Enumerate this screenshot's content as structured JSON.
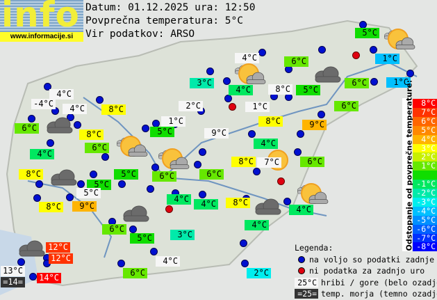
{
  "logo": {
    "word": "info",
    "url": "www.informacije.si"
  },
  "header": {
    "date_line": "Datum: 01.12.2025 ura: 12:50",
    "avg_line": "Povprečna temperatura: 5°C",
    "source_line": "Vir podatkov: ARSO"
  },
  "average_temperature": 5,
  "scale": {
    "title": "Odstopanje od povprečne temperature:",
    "rows": [
      {
        "label": "8°C",
        "color": "#ff0000"
      },
      {
        "label": "7°C",
        "color": "#ff3300"
      },
      {
        "label": "6°C",
        "color": "#ff6600"
      },
      {
        "label": "5°C",
        "color": "#ff8800"
      },
      {
        "label": "4°C",
        "color": "#ffb400"
      },
      {
        "label": "3°C",
        "color": "#ffff00"
      },
      {
        "label": "2°C",
        "color": "#c8f000"
      },
      {
        "label": "1°C",
        "color": "#66e800"
      },
      {
        "label": "",
        "color": "#10dd00"
      },
      {
        "label": "-1°C",
        "color": "#00e860"
      },
      {
        "label": "-2°C",
        "color": "#00eaaa"
      },
      {
        "label": "-3°C",
        "color": "#00eeee"
      },
      {
        "label": "-4°C",
        "color": "#00c0ff"
      },
      {
        "label": "-5°C",
        "color": "#0090ff"
      },
      {
        "label": "-6°C",
        "color": "#0060ff"
      },
      {
        "label": "-7°C",
        "color": "#0030ff"
      },
      {
        "label": "-8°C",
        "color": "#0000ff"
      }
    ]
  },
  "stations": [
    {
      "t": "4°C",
      "kind": "mountain"
    },
    {
      "t": "-4°C",
      "kind": "mountain"
    },
    {
      "t": "4°C",
      "kind": "mountain"
    },
    {
      "t": "6°C",
      "dev": 1
    },
    {
      "t": "8°C",
      "dev": 3
    },
    {
      "t": "3°C",
      "dev": -2
    },
    {
      "t": "2°C",
      "kind": "mountain"
    },
    {
      "t": "1°C",
      "kind": "mountain"
    },
    {
      "t": "5°C",
      "dev": 0
    },
    {
      "t": "8°C",
      "dev": 3
    },
    {
      "t": "6°C",
      "dev": 1
    },
    {
      "t": "4°C",
      "dev": -1
    },
    {
      "t": "9°C",
      "kind": "mountain"
    },
    {
      "t": "8°C",
      "dev": 3
    },
    {
      "t": "5°C",
      "dev": 0
    },
    {
      "t": "5°C",
      "dev": 0
    },
    {
      "t": "6°C",
      "dev": 1
    },
    {
      "t": "6°C",
      "dev": 1
    },
    {
      "t": "5°C",
      "kind": "mountain"
    },
    {
      "t": "9°C",
      "dev": 4
    },
    {
      "t": "8°C",
      "dev": 3
    },
    {
      "t": "4°C",
      "dev": -1
    },
    {
      "t": "4°C",
      "dev": -1
    },
    {
      "t": "5°C",
      "dev": 0
    },
    {
      "t": "1°C",
      "dev": -4
    },
    {
      "t": "4°C",
      "kind": "mountain"
    },
    {
      "t": "6°C",
      "dev": 1
    },
    {
      "t": "4°C",
      "dev": -1
    },
    {
      "t": "8°C",
      "kind": "mountain"
    },
    {
      "t": "5°C",
      "dev": 0
    },
    {
      "t": "6°C",
      "dev": 1
    },
    {
      "t": "1°C",
      "dev": -4
    },
    {
      "t": "1°C",
      "kind": "mountain"
    },
    {
      "t": "6°C",
      "dev": 1
    },
    {
      "t": "8°C",
      "dev": 3
    },
    {
      "t": "9°C",
      "dev": 4
    },
    {
      "t": "4°C",
      "dev": -1
    },
    {
      "t": "8°C",
      "dev": 3
    },
    {
      "t": "7°C",
      "kind": "mountain"
    },
    {
      "t": "6°C",
      "dev": 1
    },
    {
      "t": "8°C",
      "dev": 3
    },
    {
      "t": "4°C",
      "dev": -1
    },
    {
      "t": "4°C",
      "dev": -1
    },
    {
      "t": "6°C",
      "dev": 1
    },
    {
      "t": "5°C",
      "dev": 0
    },
    {
      "t": "3°C",
      "dev": -2
    },
    {
      "t": "12°C",
      "dev": 7
    },
    {
      "t": "12°C",
      "dev": 7
    },
    {
      "t": "13°C",
      "kind": "mountain"
    },
    {
      "t": "=14=",
      "kind": "sea"
    },
    {
      "t": "14°C",
      "dev": 9
    },
    {
      "t": "4°C",
      "kind": "mountain"
    },
    {
      "t": "6°C",
      "dev": 1
    },
    {
      "t": "2°C",
      "dev": -3
    }
  ],
  "weather_icons": [
    "partly-cloudy",
    "partly-cloudy",
    "partly-cloudy",
    "partly-cloudy",
    "sunny",
    "partly-cloudy",
    "cloudy",
    "cloudy",
    "cloudy",
    "cloudy",
    "cloudy",
    "cloudy"
  ],
  "legend": {
    "title": "Legenda:",
    "blue": "na voljo so podatki zadnje ure",
    "red": "ni podatka za zadnjo uro",
    "mountain_sample": "25°C",
    "mountain_text": "hribi / gore (belo ozadje)",
    "sea_sample": "=25=",
    "sea_text": "temp. morja (temno ozadje)",
    "blue_color": "#0010d0",
    "red_color": "#e00010"
  }
}
